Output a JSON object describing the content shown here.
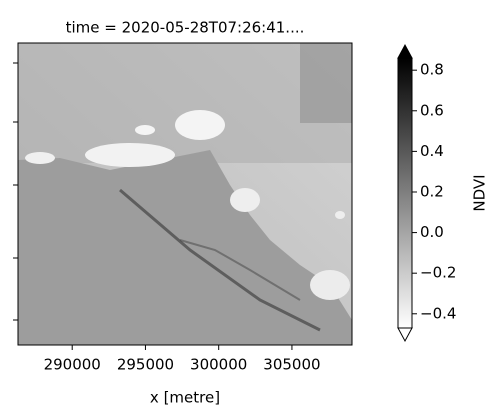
{
  "chart_data": {
    "type": "image",
    "title": "time = 2020-05-28T07:26:41....",
    "xlabel": "x [metre]",
    "xlim": [
      286300,
      309100
    ],
    "xticks": [
      290000,
      295000,
      300000,
      305000
    ],
    "colorbar": {
      "label": "NDVI",
      "cmap": "gray_r",
      "extend": "both",
      "clim": [
        -0.47,
        0.86
      ],
      "ticks": [
        {
          "value": -0.4,
          "label": "−0.4"
        },
        {
          "value": -0.2,
          "label": "−0.2"
        },
        {
          "value": 0,
          "label": "0.0"
        },
        0.2,
        0.4,
        0.6,
        0.8
      ]
    }
  }
}
